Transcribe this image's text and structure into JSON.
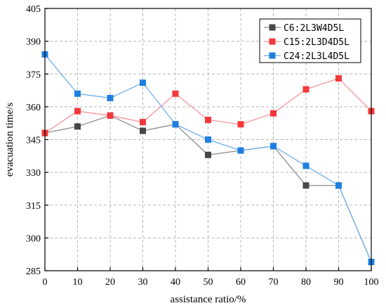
{
  "chart_data": {
    "type": "line",
    "xlabel": "assistance ratio/%",
    "ylabel": "evacuation time/s",
    "x": [
      0,
      10,
      20,
      30,
      40,
      50,
      60,
      70,
      80,
      90,
      100
    ],
    "xlim": [
      0,
      100
    ],
    "ylim": [
      285,
      405
    ],
    "xticks": [
      0,
      10,
      20,
      30,
      40,
      50,
      60,
      70,
      80,
      90,
      100
    ],
    "yticks": [
      285,
      300,
      315,
      330,
      345,
      360,
      375,
      390,
      405
    ],
    "grid": true,
    "legend_position": "top-right",
    "series": [
      {
        "name": "C6:2L3W4D5L",
        "color": "#474747",
        "line_color": "#8c8c8c",
        "values": [
          348,
          351,
          356,
          349,
          352,
          338,
          340,
          342,
          324,
          324,
          289
        ]
      },
      {
        "name": "C15:2L3D4D5L",
        "color": "#f2383b",
        "line_color": "#f5959a",
        "values": [
          348,
          358,
          356,
          353,
          366,
          354,
          352,
          357,
          368,
          373,
          358
        ]
      },
      {
        "name": "C24:2L3L4D5L",
        "color": "#1e7fe0",
        "line_color": "#6fb0ee",
        "values": [
          384,
          366,
          364,
          371,
          352,
          345,
          340,
          342,
          333,
          324,
          289
        ]
      }
    ]
  }
}
